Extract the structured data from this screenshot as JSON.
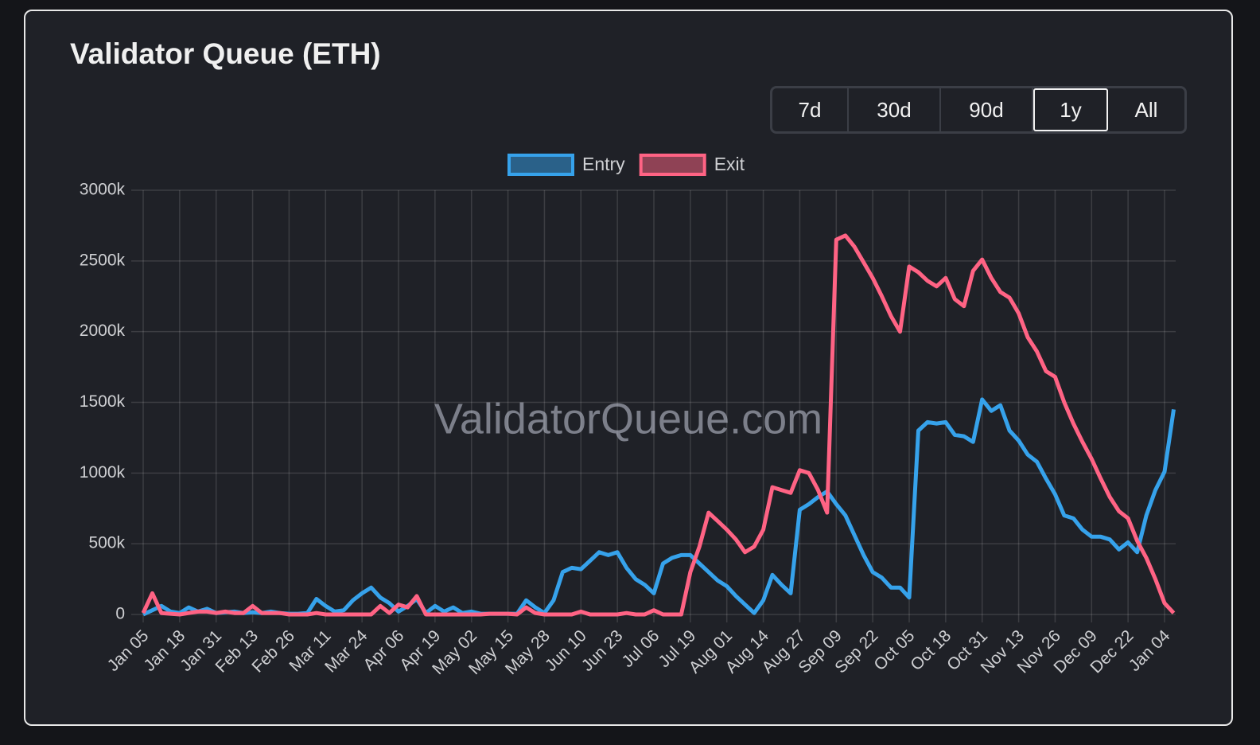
{
  "chart_data": {
    "type": "line",
    "title": "Validator Queue (ETH)",
    "watermark": "ValidatorQueue.com",
    "range_buttons": [
      "7d",
      "30d",
      "90d",
      "1y",
      "All"
    ],
    "selected_range": "1y",
    "categories": [
      "Jan 05",
      null,
      null,
      null,
      "Jan 18",
      null,
      null,
      null,
      "Jan 31",
      null,
      null,
      null,
      "Feb 13",
      null,
      null,
      null,
      "Feb 26",
      null,
      null,
      null,
      "Mar 11",
      null,
      null,
      null,
      "Mar 24",
      null,
      null,
      null,
      "Apr 06",
      null,
      null,
      null,
      "Apr 19",
      null,
      null,
      null,
      "May 02",
      null,
      null,
      null,
      "May 15",
      null,
      null,
      null,
      "May 28",
      null,
      null,
      null,
      "Jun 10",
      null,
      null,
      null,
      "Jun 23",
      null,
      null,
      null,
      "Jul 06",
      null,
      null,
      null,
      "Jul 19",
      null,
      null,
      null,
      "Aug 01",
      null,
      null,
      null,
      "Aug 14",
      null,
      null,
      null,
      "Aug 27",
      null,
      null,
      null,
      "Sep 09",
      null,
      null,
      null,
      "Sep 22",
      null,
      null,
      null,
      "Oct 05",
      null,
      null,
      null,
      "Oct 18",
      null,
      null,
      null,
      "Oct 31",
      null,
      null,
      null,
      "Nov 13",
      null,
      null,
      null,
      "Nov 26",
      null,
      null,
      null,
      "Dec 09",
      null,
      null,
      null,
      "Dec 22",
      null,
      null,
      null,
      "Jan 04",
      null
    ],
    "series": [
      {
        "name": "Entry",
        "color": "#36a2eb",
        "values": [
          0,
          30000,
          60000,
          20000,
          10000,
          50000,
          20000,
          40000,
          10000,
          15000,
          20000,
          10000,
          15000,
          10000,
          20000,
          10000,
          5000,
          5000,
          10000,
          110000,
          60000,
          20000,
          30000,
          100000,
          150000,
          190000,
          120000,
          80000,
          20000,
          60000,
          110000,
          10000,
          60000,
          20000,
          50000,
          10000,
          20000,
          5000,
          5000,
          5000,
          5000,
          5000,
          100000,
          50000,
          10000,
          100000,
          300000,
          330000,
          320000,
          380000,
          440000,
          420000,
          440000,
          330000,
          250000,
          210000,
          150000,
          360000,
          400000,
          420000,
          420000,
          360000,
          300000,
          240000,
          200000,
          130000,
          70000,
          10000,
          100000,
          280000,
          210000,
          150000,
          740000,
          780000,
          830000,
          870000,
          780000,
          700000,
          560000,
          420000,
          300000,
          260000,
          190000,
          190000,
          120000,
          1300000,
          1360000,
          1350000,
          1360000,
          1270000,
          1260000,
          1220000,
          1520000,
          1440000,
          1480000,
          1300000,
          1230000,
          1130000,
          1080000,
          960000,
          850000,
          700000,
          680000,
          600000,
          550000,
          550000,
          530000,
          460000,
          510000,
          440000,
          700000,
          880000,
          1010000,
          1450000
        ]
      },
      {
        "name": "Exit",
        "color": "#ff6384",
        "values": [
          10000,
          150000,
          10000,
          5000,
          0,
          10000,
          20000,
          20000,
          10000,
          20000,
          10000,
          10000,
          60000,
          10000,
          10000,
          10000,
          0,
          0,
          0,
          10000,
          0,
          0,
          0,
          0,
          0,
          0,
          60000,
          10000,
          70000,
          50000,
          130000,
          0,
          0,
          0,
          0,
          0,
          0,
          0,
          5000,
          5000,
          5000,
          0,
          50000,
          10000,
          0,
          0,
          0,
          0,
          20000,
          0,
          0,
          0,
          0,
          10000,
          0,
          0,
          30000,
          0,
          0,
          0,
          300000,
          480000,
          720000,
          660000,
          600000,
          530000,
          440000,
          480000,
          600000,
          900000,
          880000,
          860000,
          1020000,
          1000000,
          880000,
          720000,
          2650000,
          2680000,
          2600000,
          2490000,
          2380000,
          2250000,
          2110000,
          2000000,
          2460000,
          2420000,
          2360000,
          2320000,
          2380000,
          2230000,
          2180000,
          2430000,
          2510000,
          2380000,
          2280000,
          2240000,
          2130000,
          1960000,
          1860000,
          1720000,
          1680000,
          1500000,
          1350000,
          1220000,
          1100000,
          960000,
          830000,
          730000,
          680000,
          520000,
          400000,
          250000,
          80000,
          10000
        ]
      }
    ],
    "ylim": [
      0,
      3000000
    ],
    "yticks": [
      0,
      {
        "value": 500000,
        "label": "500k"
      },
      {
        "value": 1000000,
        "label": "1000k"
      },
      {
        "value": 1500000,
        "label": "1500k"
      },
      {
        "value": 2000000,
        "label": "2000k"
      },
      {
        "value": 2500000,
        "label": "2500k"
      },
      {
        "value": 3000000,
        "label": "3000k"
      }
    ],
    "grid": true,
    "legend": "top"
  }
}
